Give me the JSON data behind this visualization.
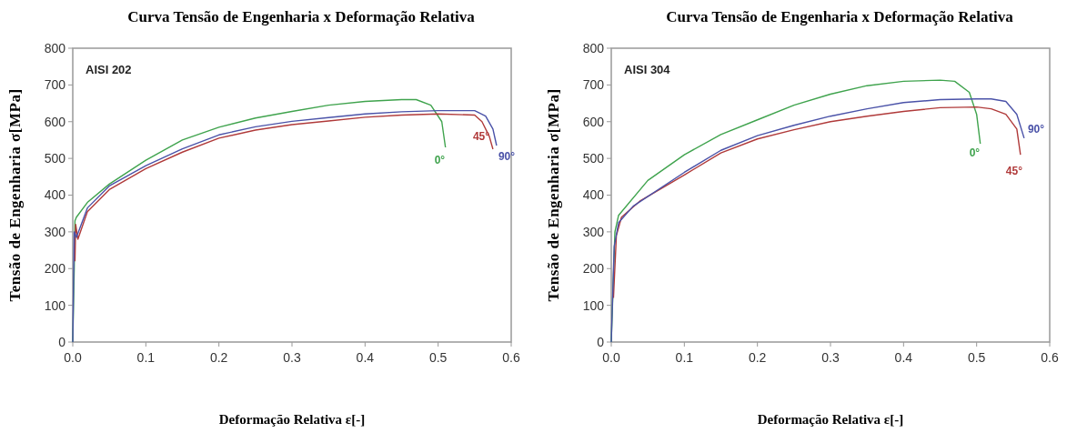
{
  "chart_data": [
    {
      "type": "line",
      "title": "Curva Tensão de Engenharia x Deformação Relativa",
      "xlabel": "Deformação Relativa ε[-]",
      "ylabel": "Tensão de Engenharia σ[MPa]",
      "annotations": [
        "AISI 202"
      ],
      "xlim": [
        0,
        0.6
      ],
      "xticks": [
        {
          "value": 0,
          "label": "0.0"
        },
        0.1,
        0.2,
        0.3,
        0.4,
        0.5,
        0.6
      ],
      "ylim": [
        0,
        800
      ],
      "yticks": [
        0,
        100,
        200,
        300,
        400,
        500,
        600,
        700,
        800
      ],
      "grid": false,
      "marker": "none",
      "line_style": "solid",
      "series": [
        {
          "name": "0°",
          "color": "#3fa34d",
          "x": [
            0,
            0.002,
            0.003,
            0.005,
            0.02,
            0.05,
            0.1,
            0.15,
            0.2,
            0.25,
            0.3,
            0.35,
            0.4,
            0.45,
            0.47,
            0.49,
            0.505,
            0.51
          ],
          "values": [
            0,
            200,
            330,
            340,
            380,
            430,
            495,
            550,
            585,
            610,
            628,
            645,
            655,
            660,
            660,
            645,
            600,
            530
          ]
        },
        {
          "name": "45°",
          "color": "#b03a3a",
          "x": [
            0.003,
            0.004,
            0.007,
            0.02,
            0.05,
            0.1,
            0.15,
            0.2,
            0.25,
            0.3,
            0.35,
            0.4,
            0.45,
            0.5,
            0.55,
            0.56,
            0.57,
            0.575
          ],
          "values": [
            220,
            320,
            280,
            355,
            415,
            472,
            517,
            555,
            577,
            592,
            602,
            612,
            618,
            621,
            618,
            600,
            560,
            525
          ]
        },
        {
          "name": "90°",
          "color": "#4a52a8",
          "x": [
            0,
            0.001,
            0.002,
            0.005,
            0.02,
            0.05,
            0.1,
            0.15,
            0.2,
            0.25,
            0.3,
            0.35,
            0.4,
            0.45,
            0.5,
            0.55,
            0.565,
            0.575,
            0.58
          ],
          "values": [
            0,
            150,
            300,
            285,
            365,
            425,
            480,
            526,
            564,
            586,
            601,
            611,
            621,
            627,
            630,
            630,
            615,
            580,
            535
          ]
        }
      ]
    },
    {
      "type": "line",
      "title": "Curva Tensão de Engenharia x Deformação Relativa",
      "xlabel": "Deformação Relativa ε[-]",
      "ylabel": "Tensão de Engenharia σ[MPa]",
      "annotations": [
        "AISI 304"
      ],
      "xlim": [
        0,
        0.6
      ],
      "xticks": [
        {
          "value": 0,
          "label": "0.0"
        },
        0.1,
        0.2,
        0.3,
        0.4,
        0.5,
        0.6
      ],
      "ylim": [
        0,
        800
      ],
      "yticks": [
        0,
        100,
        200,
        300,
        400,
        500,
        600,
        700,
        800
      ],
      "grid": false,
      "marker": "none",
      "line_style": "solid",
      "series": [
        {
          "name": "0°",
          "color": "#3fa34d",
          "x": [
            0,
            0.005,
            0.01,
            0.05,
            0.1,
            0.15,
            0.2,
            0.25,
            0.3,
            0.35,
            0.4,
            0.45,
            0.47,
            0.49,
            0.5,
            0.505
          ],
          "values": [
            0,
            300,
            345,
            440,
            510,
            565,
            605,
            645,
            675,
            698,
            710,
            713,
            710,
            680,
            620,
            540
          ]
        },
        {
          "name": "45°",
          "color": "#b03a3a",
          "x": [
            0.003,
            0.007,
            0.014,
            0.04,
            0.1,
            0.15,
            0.2,
            0.25,
            0.3,
            0.35,
            0.4,
            0.45,
            0.5,
            0.52,
            0.54,
            0.555,
            0.56
          ],
          "values": [
            120,
            290,
            340,
            385,
            455,
            515,
            553,
            578,
            600,
            615,
            628,
            638,
            640,
            635,
            620,
            580,
            510
          ]
        },
        {
          "name": "90°",
          "color": "#4a52a8",
          "x": [
            0,
            0.004,
            0.01,
            0.03,
            0.1,
            0.15,
            0.2,
            0.25,
            0.3,
            0.35,
            0.4,
            0.45,
            0.5,
            0.52,
            0.54,
            0.555,
            0.565
          ],
          "values": [
            0,
            260,
            325,
            370,
            462,
            522,
            562,
            590,
            615,
            635,
            652,
            660,
            662,
            662,
            655,
            620,
            555
          ]
        }
      ]
    }
  ]
}
